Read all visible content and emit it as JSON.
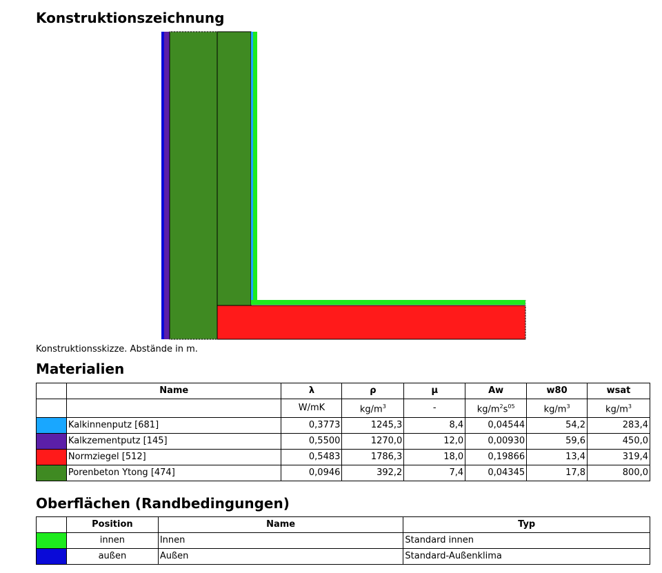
{
  "sections": {
    "construction_title": "Konstruktionszeichnung",
    "construction_caption": "Konstruktionsskizze. Abstände in m.",
    "materials_title": "Materialien",
    "surfaces_title": "Oberflächen (Randbedingungen)"
  },
  "colors": {
    "kalkinnenputz": "#19a7ff",
    "kalkzementputz": "#5b1fa8",
    "normziegel": "#ff1a1a",
    "porenbeton": "#3f8a22",
    "innen": "#1eeb1e",
    "aussen": "#0a0ad8"
  },
  "materials": {
    "headers": {
      "name": "Name",
      "lambda": "λ",
      "rho": "ρ",
      "mu": "μ",
      "aw": "Aw",
      "w80": "w80",
      "wsat": "wsat"
    },
    "units": {
      "lambda": "W/mK",
      "rho_base": "kg/m",
      "rho_sup": "3",
      "mu": "-",
      "aw_base": "kg/m",
      "aw_sup1": "2",
      "aw_mid": "s",
      "aw_sup2": "05",
      "w80_base": "kg/m",
      "w80_sup": "3",
      "wsat_base": "kg/m",
      "wsat_sup": "3"
    },
    "rows": [
      {
        "name": "Kalkinnenputz [681]",
        "lambda": "0,3773",
        "rho": "1245,3",
        "mu": "8,4",
        "aw": "0,04544",
        "w80": "54,2",
        "wsat": "283,4"
      },
      {
        "name": "Kalkzementputz [145]",
        "lambda": "0,5500",
        "rho": "1270,0",
        "mu": "12,0",
        "aw": "0,00930",
        "w80": "59,6",
        "wsat": "450,0"
      },
      {
        "name": "Normziegel [512]",
        "lambda": "0,5483",
        "rho": "1786,3",
        "mu": "18,0",
        "aw": "0,19866",
        "w80": "13,4",
        "wsat": "319,4"
      },
      {
        "name": "Porenbeton Ytong [474]",
        "lambda": "0,0946",
        "rho": "392,2",
        "mu": "7,4",
        "aw": "0,04345",
        "w80": "17,8",
        "wsat": "800,0"
      }
    ]
  },
  "surfaces": {
    "headers": {
      "position": "Position",
      "name": "Name",
      "typ": "Typ"
    },
    "rows": [
      {
        "position": "innen",
        "name": "Innen",
        "typ": "Standard innen"
      },
      {
        "position": "außen",
        "name": "Außen",
        "typ": "Standard-Außenklima"
      }
    ]
  }
}
